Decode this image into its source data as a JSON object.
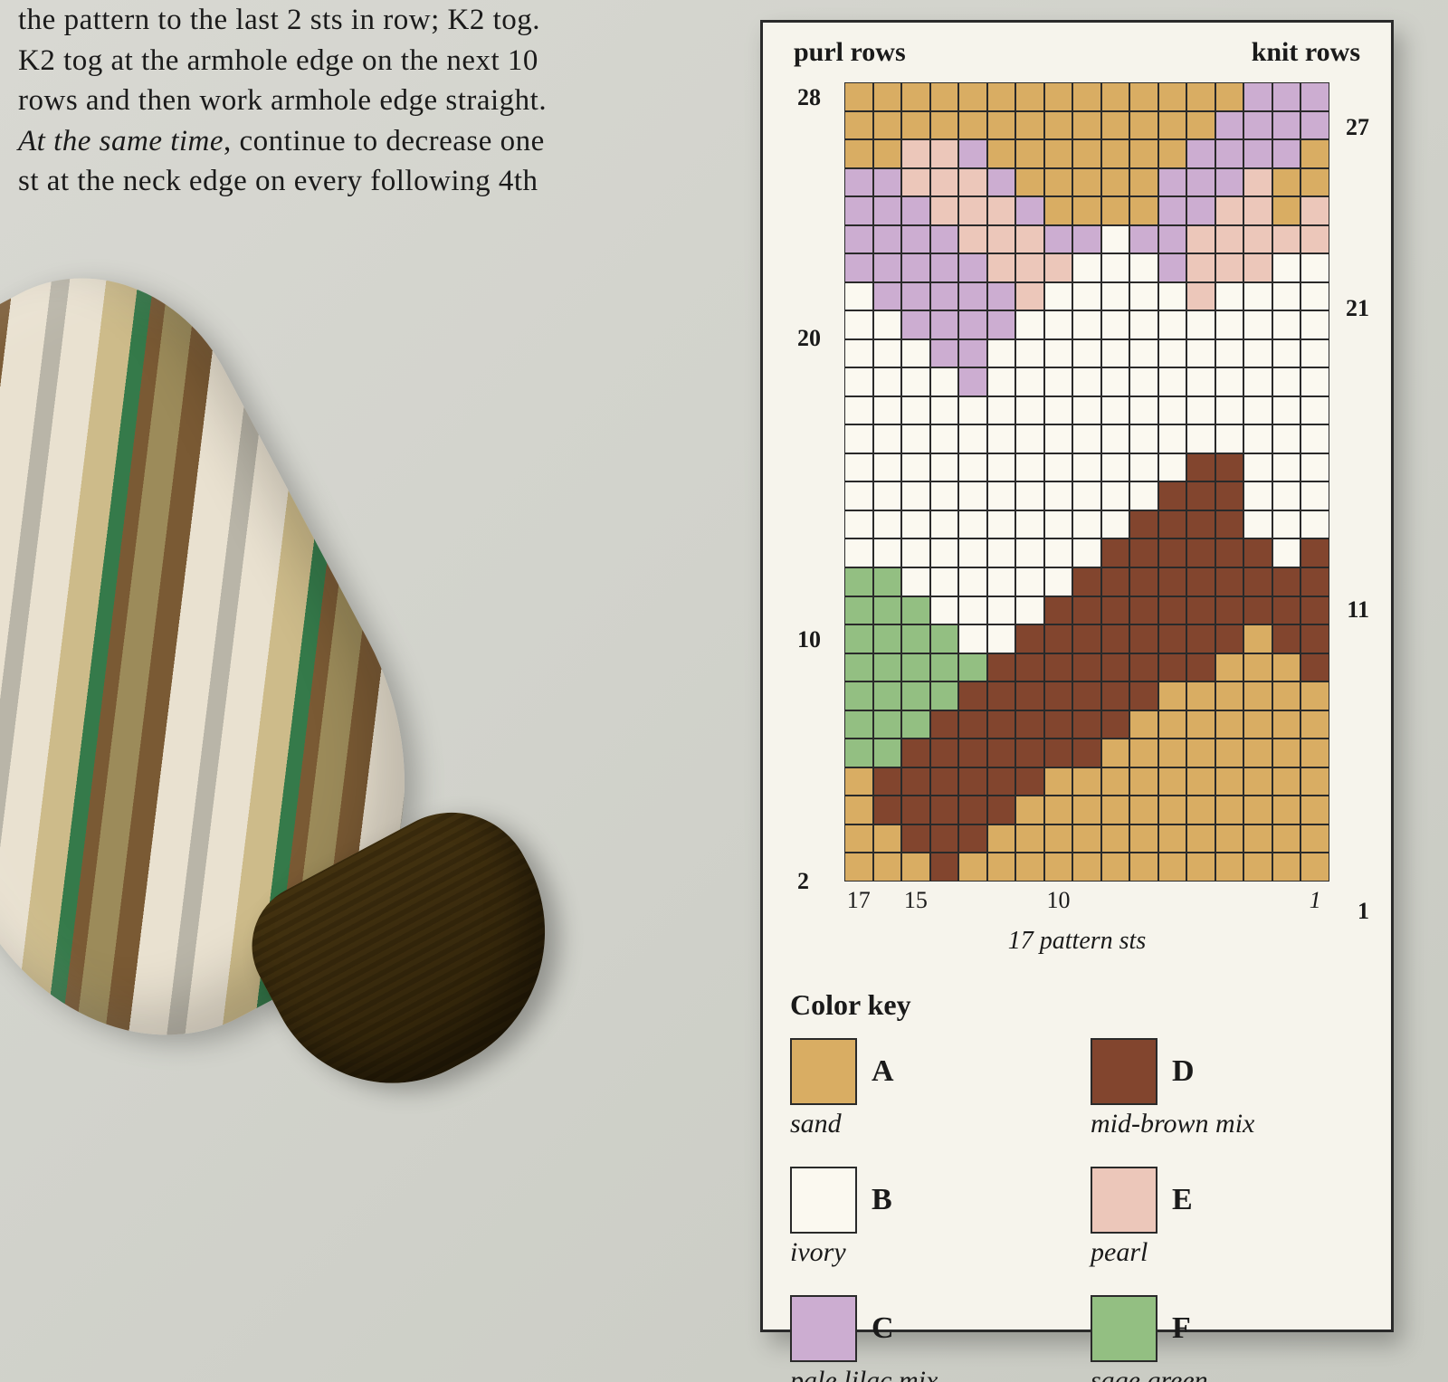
{
  "body_text_lines": [
    "the pattern to the last 2 sts in row; K2 tog.",
    "K2 tog at the armhole edge on the next 10",
    "rows and then work armhole edge straight.",
    "<span class=\"em\">At the same time</span>, continue to decrease one",
    "st at the neck edge on every following 4th"
  ],
  "panel": {
    "header_left": "purl rows",
    "header_right": "knit rows",
    "sub_caption": "17 pattern sts",
    "color_key_title": "Color key"
  },
  "chart": {
    "type": "color-grid",
    "cols": 17,
    "rows": 28,
    "cell_border": "#2a2a2a",
    "background": "#f6f4ec",
    "y_ticks_left": [
      {
        "row": 28,
        "label": "28"
      },
      {
        "row": 20,
        "label": "20"
      },
      {
        "row": 10,
        "label": "10"
      },
      {
        "row": 2,
        "label": "2"
      }
    ],
    "y_ticks_right": [
      {
        "row": 27,
        "label": "27"
      },
      {
        "row": 21,
        "label": "21"
      },
      {
        "row": 11,
        "label": "11"
      },
      {
        "row": 1,
        "label": "1"
      }
    ],
    "x_ticks_bottom": [
      {
        "col": 17,
        "label": "17"
      },
      {
        "col": 15,
        "label": "15"
      },
      {
        "col": 10,
        "label": "10"
      },
      {
        "col": 1,
        "label": "1",
        "italic": true
      }
    ],
    "data_rows_top_to_bottom": [
      "AAAAAAAAAAAAAACCC",
      "AAAAAAAAAAAAACCCC",
      "AAEECAAAAAAACCCCA",
      "CCEEECAAAAACCCEAA",
      "CCCEEECAAAACCEEAE",
      "CCCCEEECCBCCEEEEE",
      "CCCCCEEEBBBCEEEBB",
      "BCCCCCEBBBBBEBBBB",
      "BBCCCCBBBBBBBBBBB",
      "BBBCCBBBBBBBBBBBB",
      "BBBBCBBBBBBBBBBBB",
      "BBBBBBBBBBBBBBBBB",
      "BBBBBBBBBBBBBBBBB",
      "BBBBBBBBBBBBDDBBB",
      "BBBBBBBBBBBDDDBBB",
      "BBBBBBBBBBDDDDBBB",
      "BBBBBBBBBDDDDDDBD",
      "FFBBBBBBDDDDDDDDD",
      "FFFBBBBDDDDDDDDDD",
      "FFFFBBDDDDDDDDADD",
      "FFFFFDDDDDDDDAAAD",
      "FFFFDDDDDDDAAAAAA",
      "FFFDDDDDDDAAAAAAA",
      "FFDDDDDDDAAAAAAAA",
      "ADDDDDDAAAAAAAAAA",
      "ADDDDDAAAAAAAAAAA",
      "AADDDAAAAAAAAAAAA",
      "AAADAAAAAAAAAAAAA"
    ]
  },
  "colors": {
    "A": {
      "hex": "#d9ad63",
      "letter": "A",
      "name": "sand"
    },
    "B": {
      "hex": "#fbf9f0",
      "letter": "B",
      "name": "ivory"
    },
    "C": {
      "hex": "#ccadd1",
      "letter": "C",
      "name": "pale lilac mix"
    },
    "D": {
      "hex": "#82452e",
      "letter": "D",
      "name": "mid-brown mix"
    },
    "E": {
      "hex": "#ecc7ba",
      "letter": "E",
      "name": "pearl"
    },
    "F": {
      "hex": "#93bf82",
      "letter": "F",
      "name": "sage green"
    }
  },
  "color_key_order": [
    "A",
    "D",
    "B",
    "E",
    "C",
    "F"
  ],
  "sleeve_palette": {
    "sand": "#cdbb8a",
    "brown": "#7a5a34",
    "ivory": "#e9e1d0",
    "grey": "#b9b5a8",
    "green": "#357a4a",
    "cuff": "#7d6b3d"
  }
}
